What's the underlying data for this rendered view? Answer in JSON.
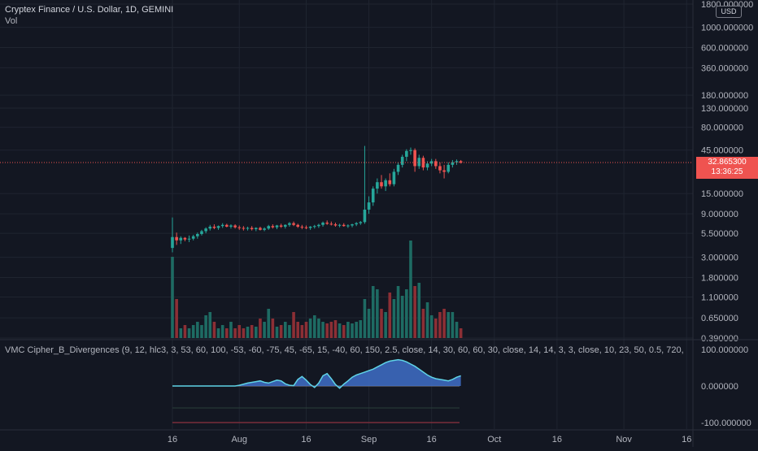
{
  "header": {
    "title": "Cryptex Finance / U.S. Dollar, 1D, GEMINI",
    "volume_label": "Vol",
    "indicator_label": "VMC Cipher_B_Divergences (9, 12, hlc3, 3, 53, 60, 100, -53, -60, -75, 45, -65, 15, -40, 60, 150, 2.5, close, 14, 30, 60, 60, 30, close, 14, 14, 3, 3, close, 10, 23, 50, 0.5, 720,",
    "currency_badge": "USD"
  },
  "colors": {
    "background": "#131722",
    "up": "#26a69a",
    "down": "#ef5350",
    "vol_up": "#1e6b63",
    "vol_down": "#8c2f35",
    "grid": "#1f2430",
    "axis_text": "#b2b5be",
    "wave_fill": "#3f6fc8",
    "wave_line": "#5fd3e6"
  },
  "last_price": {
    "value": "32.865300",
    "countdown": "13:36:25"
  },
  "chart_data": [
    {
      "type": "candlestick",
      "title": "Cryptex Finance / U.S. Dollar, 1D, GEMINI",
      "y_scale": "log",
      "y_ticks": [
        "1800.000000",
        "1000.000000",
        "600.000000",
        "360.000000",
        "180.000000",
        "130.000000",
        "80.000000",
        "45.000000",
        "15.000000",
        "9.000000",
        "5.500000",
        "3.000000",
        "1.800000",
        "1.100000",
        "0.650000",
        "0.390000"
      ],
      "x_ticks": [
        "16",
        "Aug",
        "16",
        "Sep",
        "16",
        "Oct",
        "16",
        "Nov",
        "16"
      ],
      "start_date": "2021-07-16",
      "candles": [
        [
          3.8,
          8.2,
          3.4,
          5.0
        ],
        [
          5.0,
          5.6,
          4.1,
          4.6
        ],
        [
          4.6,
          5.1,
          4.2,
          4.9
        ],
        [
          4.9,
          5.0,
          4.5,
          4.7
        ],
        [
          4.7,
          5.2,
          4.4,
          4.8
        ],
        [
          4.8,
          5.3,
          4.6,
          5.1
        ],
        [
          5.1,
          5.6,
          4.8,
          5.4
        ],
        [
          5.4,
          6.0,
          5.2,
          5.8
        ],
        [
          5.8,
          6.4,
          5.5,
          6.2
        ],
        [
          6.2,
          6.8,
          5.9,
          6.5
        ],
        [
          6.5,
          6.9,
          6.1,
          6.3
        ],
        [
          6.3,
          6.7,
          6.0,
          6.6
        ],
        [
          6.6,
          7.1,
          6.3,
          6.8
        ],
        [
          6.8,
          7.0,
          6.4,
          6.5
        ],
        [
          6.5,
          6.9,
          6.2,
          6.7
        ],
        [
          6.7,
          6.9,
          6.2,
          6.4
        ],
        [
          6.4,
          6.7,
          6.0,
          6.3
        ],
        [
          6.3,
          6.6,
          5.9,
          6.2
        ],
        [
          6.2,
          6.5,
          5.9,
          6.3
        ],
        [
          6.3,
          6.6,
          5.9,
          6.1
        ],
        [
          6.1,
          6.4,
          5.8,
          6.3
        ],
        [
          6.3,
          6.5,
          5.9,
          6.0
        ],
        [
          6.0,
          6.4,
          5.8,
          6.2
        ],
        [
          6.2,
          6.8,
          6.0,
          6.6
        ],
        [
          6.6,
          6.9,
          6.2,
          6.4
        ],
        [
          6.4,
          6.8,
          6.1,
          6.7
        ],
        [
          6.7,
          7.0,
          6.3,
          6.5
        ],
        [
          6.5,
          6.9,
          6.2,
          6.8
        ],
        [
          6.8,
          7.3,
          6.5,
          7.1
        ],
        [
          7.1,
          7.4,
          6.6,
          6.8
        ],
        [
          6.8,
          7.0,
          6.3,
          6.5
        ],
        [
          6.5,
          6.8,
          6.1,
          6.4
        ],
        [
          6.4,
          6.7,
          6.1,
          6.3
        ],
        [
          6.3,
          6.6,
          6.0,
          6.5
        ],
        [
          6.5,
          6.8,
          6.2,
          6.6
        ],
        [
          6.6,
          7.0,
          6.3,
          6.8
        ],
        [
          6.8,
          7.4,
          6.5,
          7.2
        ],
        [
          7.2,
          7.6,
          6.8,
          7.0
        ],
        [
          7.0,
          7.4,
          6.7,
          6.9
        ],
        [
          6.9,
          7.2,
          6.5,
          6.7
        ],
        [
          6.7,
          7.0,
          6.4,
          6.8
        ],
        [
          6.8,
          7.1,
          6.5,
          6.6
        ],
        [
          6.6,
          6.9,
          6.3,
          6.7
        ],
        [
          6.7,
          7.0,
          6.4,
          6.9
        ],
        [
          6.9,
          7.3,
          6.6,
          7.1
        ],
        [
          7.1,
          7.5,
          6.8,
          7.3
        ],
        [
          7.3,
          50.0,
          7.0,
          10.0
        ],
        [
          10.0,
          14.0,
          9.0,
          12.0
        ],
        [
          12.0,
          18.0,
          11.0,
          17.0
        ],
        [
          17.0,
          22.0,
          15.0,
          20.0
        ],
        [
          20.0,
          24.0,
          17.0,
          18.0
        ],
        [
          18.0,
          22.0,
          16.0,
          21.0
        ],
        [
          21.0,
          25.0,
          18.0,
          19.0
        ],
        [
          19.0,
          28.0,
          18.0,
          26.0
        ],
        [
          26.0,
          33.0,
          24.0,
          31.0
        ],
        [
          31.0,
          40.0,
          29.0,
          38.0
        ],
        [
          38.0,
          46.0,
          34.0,
          44.0
        ],
        [
          44.0,
          48.0,
          40.0,
          45.0
        ],
        [
          45.0,
          47.0,
          26.0,
          30.0
        ],
        [
          30.0,
          40.0,
          28.0,
          37.0
        ],
        [
          37.0,
          39.0,
          27.0,
          29.0
        ],
        [
          29.0,
          34.0,
          27.0,
          32.0
        ],
        [
          32.0,
          36.0,
          30.0,
          34.0
        ],
        [
          34.0,
          36.0,
          28.0,
          30.0
        ],
        [
          30.0,
          33.0,
          25.0,
          27.0
        ],
        [
          27.0,
          31.0,
          22.0,
          26.0
        ],
        [
          26.0,
          33.0,
          25.0,
          31.0
        ],
        [
          31.0,
          35.0,
          29.0,
          33.0
        ],
        [
          33.0,
          35.5,
          31.0,
          34.0
        ],
        [
          34.0,
          35.0,
          32.0,
          32.8653
        ]
      ],
      "volumes": [
        2.5,
        1.2,
        0.3,
        0.4,
        0.3,
        0.4,
        0.5,
        0.4,
        0.7,
        0.8,
        0.5,
        0.3,
        0.4,
        0.3,
        0.5,
        0.3,
        0.4,
        0.3,
        0.35,
        0.4,
        0.35,
        0.6,
        0.5,
        0.9,
        0.6,
        0.35,
        0.4,
        0.5,
        0.4,
        0.8,
        0.5,
        0.4,
        0.5,
        0.6,
        0.7,
        0.6,
        0.5,
        0.45,
        0.5,
        0.55,
        0.45,
        0.4,
        0.5,
        0.45,
        0.5,
        0.55,
        1.2,
        0.9,
        1.6,
        1.5,
        0.9,
        0.8,
        1.4,
        1.2,
        1.6,
        1.3,
        1.5,
        3.0,
        1.6,
        1.7,
        0.9,
        1.1,
        0.7,
        0.6,
        0.8,
        0.9,
        0.8,
        0.8,
        0.5,
        0.3
      ]
    },
    {
      "type": "area",
      "title": "VMC Cipher_B_Divergences",
      "y_ticks": [
        "100.000000",
        "0.000000",
        "-100.000000"
      ],
      "ylim": [
        -100,
        100
      ],
      "wave": [
        0,
        0,
        0,
        0,
        0,
        0,
        0,
        0,
        0,
        0,
        0,
        0,
        0,
        0,
        0,
        0,
        2,
        5,
        8,
        10,
        12,
        14,
        10,
        8,
        12,
        16,
        14,
        6,
        2,
        1,
        18,
        26,
        16,
        4,
        -4,
        8,
        28,
        34,
        20,
        4,
        -6,
        5,
        14,
        24,
        30,
        34,
        38,
        42,
        46,
        52,
        58,
        64,
        68,
        70,
        72,
        70,
        66,
        60,
        54,
        46,
        38,
        30,
        24,
        20,
        18,
        16,
        14,
        18,
        24,
        28
      ]
    }
  ]
}
